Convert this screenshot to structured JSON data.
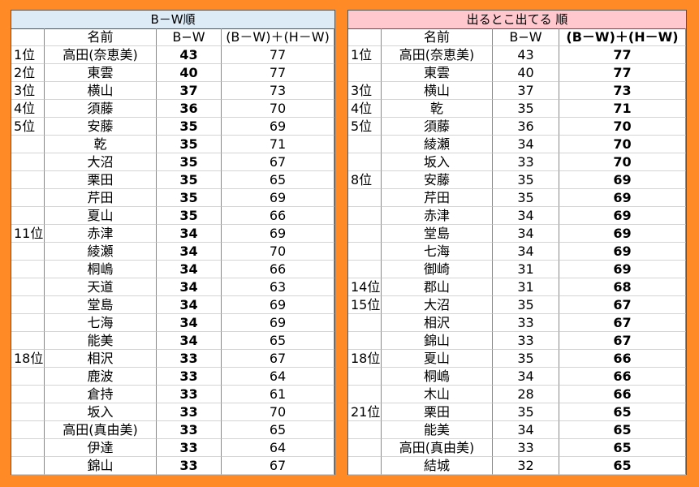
{
  "left": {
    "title": "B－W順",
    "header": [
      "名前",
      "B−W",
      "(B－W)＋(H－W)"
    ],
    "rows": [
      [
        "1位",
        "高田(奈恵美)",
        43,
        77
      ],
      [
        "2位",
        "東雲",
        40,
        77
      ],
      [
        "3位",
        "横山",
        37,
        73
      ],
      [
        "4位",
        "須藤",
        36,
        70
      ],
      [
        "5位",
        "安藤",
        35,
        69
      ],
      [
        null,
        "乾",
        35,
        71
      ],
      [
        null,
        "大沼",
        35,
        67
      ],
      [
        null,
        "栗田",
        35,
        65
      ],
      [
        null,
        "芹田",
        35,
        69
      ],
      [
        null,
        "夏山",
        35,
        66
      ],
      [
        "11位",
        "赤津",
        34,
        69
      ],
      [
        null,
        "綾瀬",
        34,
        70
      ],
      [
        null,
        "桐嶋",
        34,
        66
      ],
      [
        null,
        "天道",
        34,
        63
      ],
      [
        null,
        "堂島",
        34,
        69
      ],
      [
        null,
        "七海",
        34,
        69
      ],
      [
        null,
        "能美",
        34,
        65
      ],
      [
        "18位",
        "相沢",
        33,
        67
      ],
      [
        null,
        "鹿波",
        33,
        64
      ],
      [
        null,
        "倉持",
        33,
        61
      ],
      [
        null,
        "坂入",
        33,
        70
      ],
      [
        null,
        "高田(真由美)",
        33,
        65
      ],
      [
        null,
        "伊達",
        33,
        64
      ],
      [
        null,
        "錦山",
        33,
        67
      ]
    ]
  },
  "right": {
    "title": "出るとこ出てる 順",
    "header": [
      "名前",
      "B−W",
      "(B－W)＋(H－W)"
    ],
    "rows": [
      [
        "1位",
        "高田(奈恵美)",
        43,
        77
      ],
      [
        null,
        "東雲",
        40,
        77
      ],
      [
        "3位",
        "横山",
        37,
        73
      ],
      [
        "4位",
        "乾",
        35,
        71
      ],
      [
        "5位",
        "須藤",
        36,
        70
      ],
      [
        null,
        "綾瀬",
        34,
        70
      ],
      [
        null,
        "坂入",
        33,
        70
      ],
      [
        "8位",
        "安藤",
        35,
        69
      ],
      [
        null,
        "芹田",
        35,
        69
      ],
      [
        null,
        "赤津",
        34,
        69
      ],
      [
        null,
        "堂島",
        34,
        69
      ],
      [
        null,
        "七海",
        34,
        69
      ],
      [
        null,
        "御崎",
        31,
        69
      ],
      [
        "14位",
        "郡山",
        31,
        68
      ],
      [
        "15位",
        "大沼",
        35,
        67
      ],
      [
        null,
        "相沢",
        33,
        67
      ],
      [
        null,
        "錦山",
        33,
        67
      ],
      [
        "18位",
        "夏山",
        35,
        66
      ],
      [
        null,
        "桐嶋",
        34,
        66
      ],
      [
        null,
        "木山",
        28,
        66
      ],
      [
        "21位",
        "栗田",
        35,
        65
      ],
      [
        null,
        "能美",
        34,
        65
      ],
      [
        null,
        "高田(真由美)",
        33,
        65
      ],
      [
        null,
        "結城",
        32,
        65
      ]
    ]
  }
}
